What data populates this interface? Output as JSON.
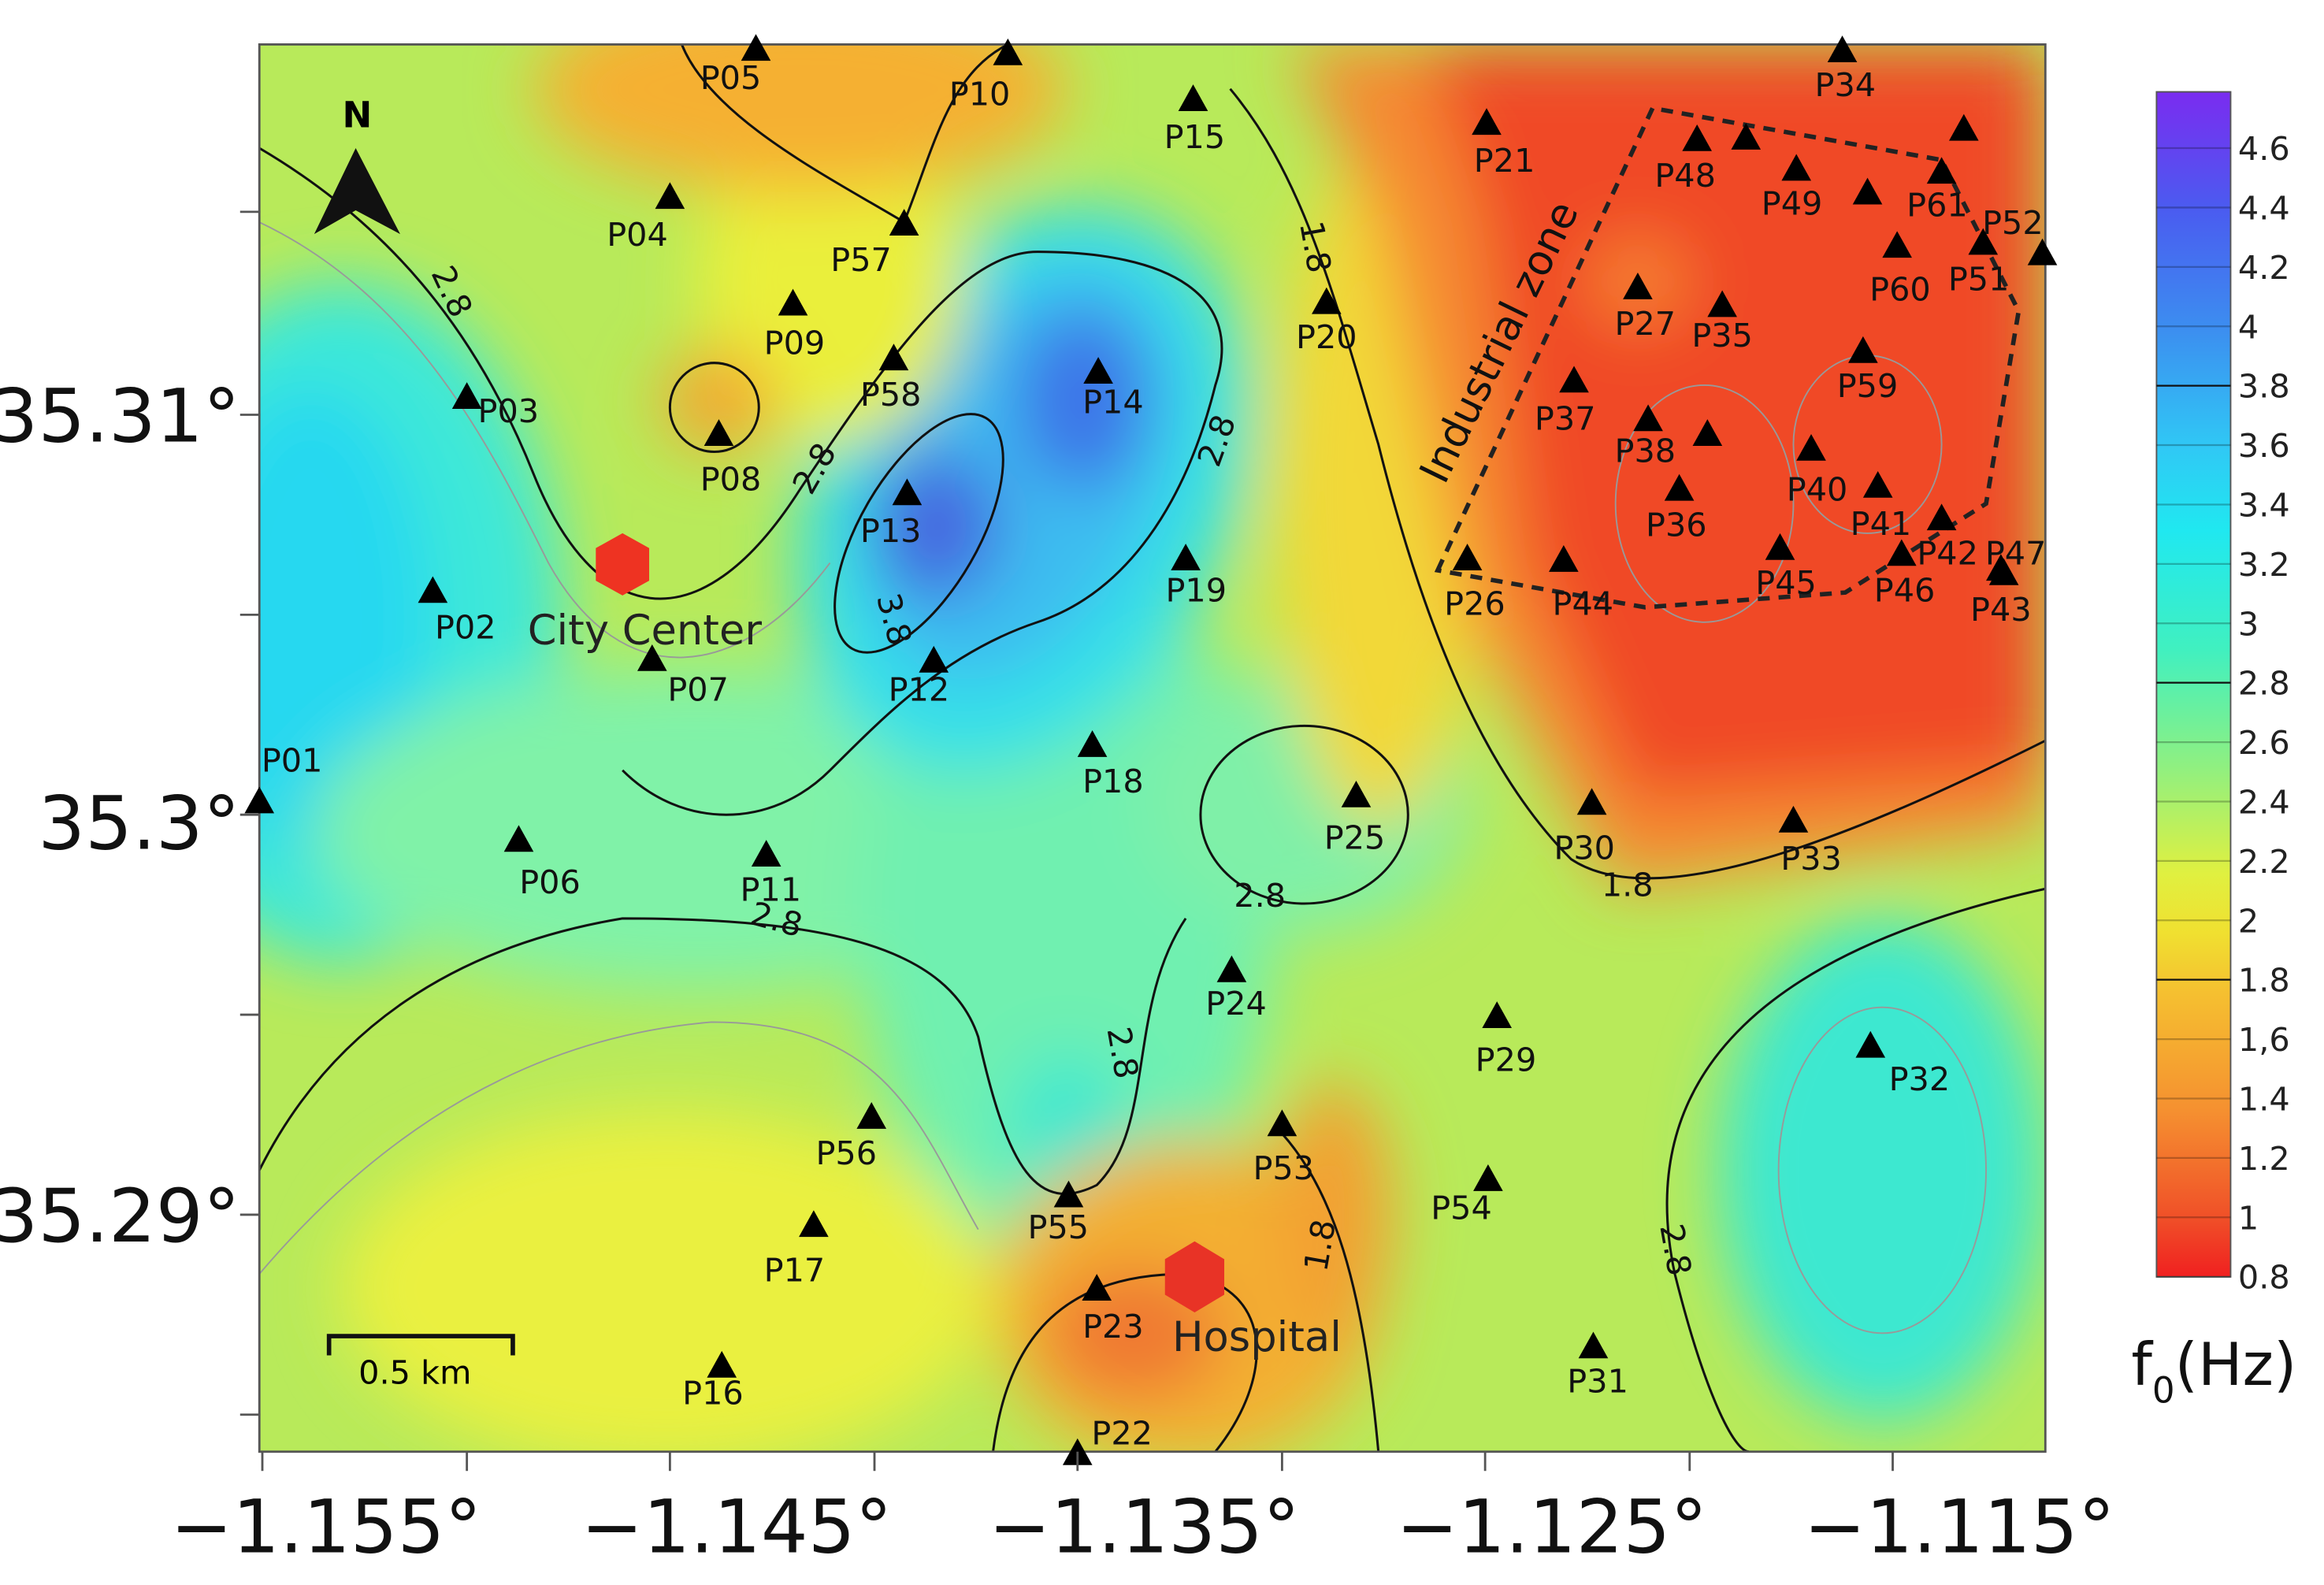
{
  "map": {
    "north": "N",
    "scale_bar": "0.5 km",
    "places": [
      "City Center",
      "Hospital"
    ],
    "zone": "Industrial zone",
    "stations": [
      "P01",
      "P05",
      "P10",
      "P15",
      "P21",
      "P34",
      "P48",
      "P49",
      "P61",
      "P52",
      "P04",
      "P57",
      "P09",
      "P58",
      "P14",
      "P20",
      "P27",
      "P35",
      "P60",
      "P51",
      "P59",
      "P37",
      "P38",
      "P03",
      "P08",
      "P13",
      "P36",
      "P40",
      "P41",
      "P42",
      "P47",
      "P43",
      "P45",
      "P46",
      "P44",
      "P26",
      "P19",
      "P02",
      "P07",
      "P12",
      "P18",
      "P25",
      "P30",
      "P33",
      "P06",
      "P11",
      "P24",
      "P29",
      "P32",
      "P56",
      "P53",
      "P54",
      "P55",
      "P17",
      "P23",
      "P31",
      "P16",
      "P22"
    ],
    "contour_labels": [
      "2.8",
      "2.8",
      "3.8",
      "2.8",
      "1.8",
      "2.8",
      "2.8",
      "1.8",
      "2.8",
      "1.8",
      "2.8"
    ],
    "y_labels": [
      "35.31°",
      "35.3°",
      "35.29°"
    ],
    "x_labels": [
      "−1.155°",
      "−1.145°",
      "−1.135°",
      "−1.125°",
      "−1.115°"
    ]
  },
  "colorbar": {
    "labels": [
      "4.6",
      "4.4",
      "4.2",
      "4",
      "3.8",
      "3.6",
      "3.4",
      "3.2",
      "3",
      "2.8",
      "2.6",
      "2.4",
      "2.2",
      "2",
      "1.8",
      "1,6",
      "1.4",
      "1.2",
      "1",
      "0.8"
    ],
    "title": {
      "base": "f",
      "sub": "0",
      "unit": "(Hz)"
    }
  }
}
